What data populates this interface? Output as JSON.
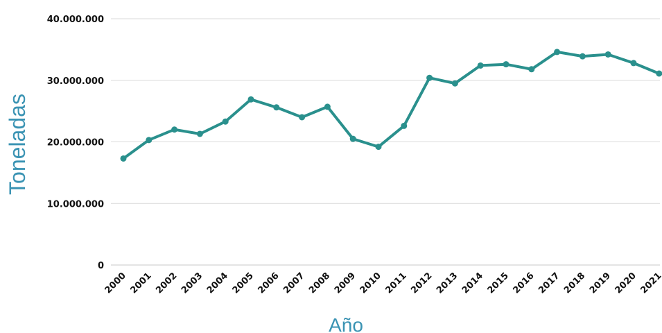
{
  "chart_data": {
    "type": "line",
    "title": "",
    "xlabel": "Año",
    "ylabel": "Toneladas",
    "categories": [
      "2000",
      "2001",
      "2002",
      "2003",
      "2004",
      "2005",
      "2006",
      "2007",
      "2008",
      "2009",
      "2010",
      "2011",
      "2012",
      "2013",
      "2014",
      "2015",
      "2016",
      "2017",
      "2018",
      "2019",
      "2020",
      "2021"
    ],
    "y_ticks": [
      0,
      10000000,
      20000000,
      30000000,
      40000000
    ],
    "y_tick_labels": [
      "0",
      "10.000.000",
      "20.000.000",
      "30.000.000",
      "40.000.000"
    ],
    "ylim": [
      0,
      40000000
    ],
    "grid": true,
    "legend": "none",
    "series": [
      {
        "values": [
          17300000,
          20300000,
          22000000,
          21300000,
          23300000,
          26900000,
          25600000,
          24000000,
          25700000,
          20500000,
          19200000,
          22600000,
          30400000,
          29500000,
          32400000,
          32600000,
          31800000,
          34600000,
          33900000,
          34200000,
          32800000,
          31100000
        ],
        "color": "#2a908d"
      }
    ],
    "colors": {
      "line": "#2a908d",
      "grid": "#d9d9d9",
      "axis_title": "#3a93b3"
    }
  }
}
